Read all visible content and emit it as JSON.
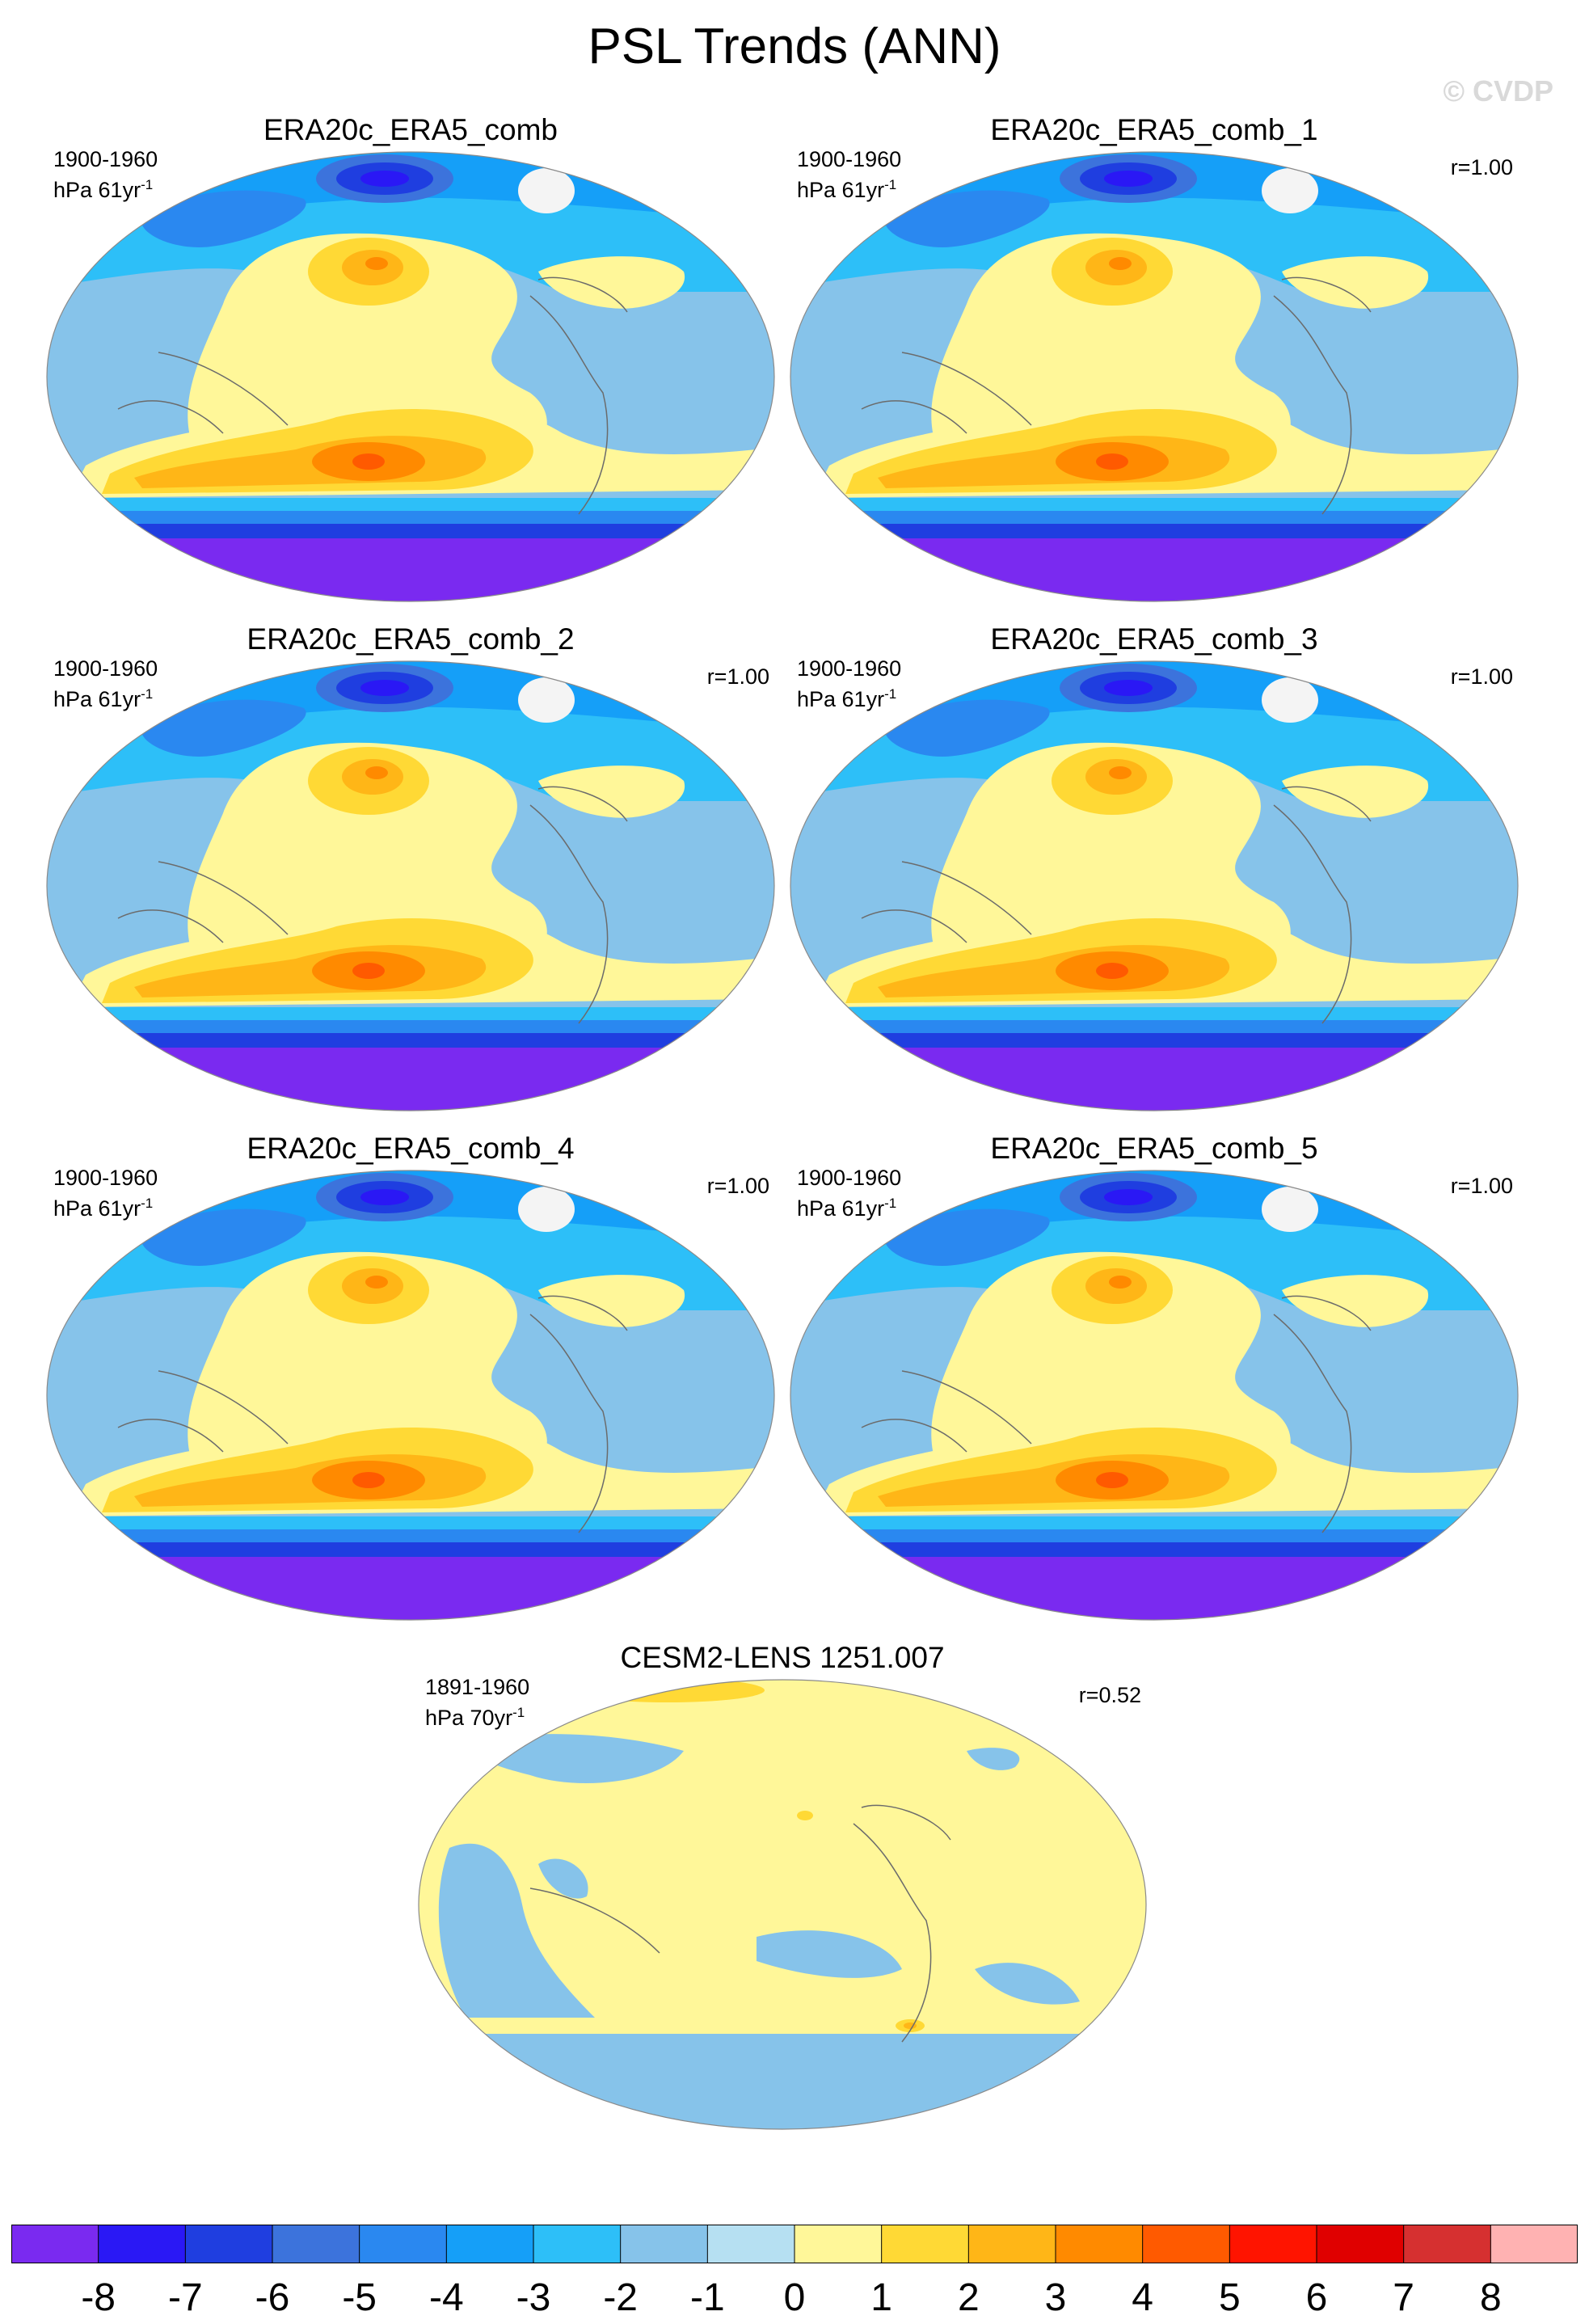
{
  "figure": {
    "title": "PSL Trends (ANN)",
    "watermark": "© CVDP"
  },
  "panels": [
    {
      "title": "ERA20c_ERA5_comb",
      "period": "1900-1960",
      "units": "hPa 61yr",
      "units_exp": "-1",
      "r": "",
      "pattern": "obs"
    },
    {
      "title": "ERA20c_ERA5_comb_1",
      "period": "1900-1960",
      "units": "hPa 61yr",
      "units_exp": "-1",
      "r": "r=1.00",
      "pattern": "obs"
    },
    {
      "title": "ERA20c_ERA5_comb_2",
      "period": "1900-1960",
      "units": "hPa 61yr",
      "units_exp": "-1",
      "r": "r=1.00",
      "pattern": "obs"
    },
    {
      "title": "ERA20c_ERA5_comb_3",
      "period": "1900-1960",
      "units": "hPa 61yr",
      "units_exp": "-1",
      "r": "r=1.00",
      "pattern": "obs"
    },
    {
      "title": "ERA20c_ERA5_comb_4",
      "period": "1900-1960",
      "units": "hPa 61yr",
      "units_exp": "-1",
      "r": "r=1.00",
      "pattern": "obs"
    },
    {
      "title": "ERA20c_ERA5_comb_5",
      "period": "1900-1960",
      "units": "hPa 61yr",
      "units_exp": "-1",
      "r": "r=1.00",
      "pattern": "obs"
    },
    {
      "title": "CESM2-LENS 1251.007",
      "period": "1891-1960",
      "units": "hPa 70yr",
      "units_exp": "-1",
      "r": "r=0.52",
      "pattern": "model"
    }
  ],
  "colorbar": {
    "labels": [
      "-8",
      "-7",
      "-6",
      "-5",
      "-4",
      "-3",
      "-2",
      "-1",
      "0",
      "1",
      "2",
      "3",
      "4",
      "5",
      "6",
      "7",
      "8"
    ],
    "colors": [
      "#7a2af0",
      "#2a18f5",
      "#1f3ee0",
      "#3c73dc",
      "#2a88f0",
      "#159ff8",
      "#2dbff8",
      "#86c3ea",
      "#b6e0f2",
      "#fff799",
      "#ffd935",
      "#ffb617",
      "#ff8a00",
      "#ff5a00",
      "#ff1400",
      "#e00000",
      "#d63030",
      "#ffb2b2"
    ]
  },
  "palette": {
    "level_m8": "#7a2af0",
    "level_m7": "#2a18f5",
    "level_m6": "#1f3ee0",
    "level_m5": "#3c73dc",
    "level_m4": "#2a88f0",
    "level_m3": "#159ff8",
    "level_m2": "#2dbff8",
    "level_m1": "#86c3ea",
    "level_0": "#b6e0f2",
    "level_1": "#fff799",
    "level_2": "#ffd935",
    "level_3": "#ffb617",
    "level_4": "#ff8a00",
    "level_5": "#ff5a00",
    "level_6": "#ff1400"
  }
}
